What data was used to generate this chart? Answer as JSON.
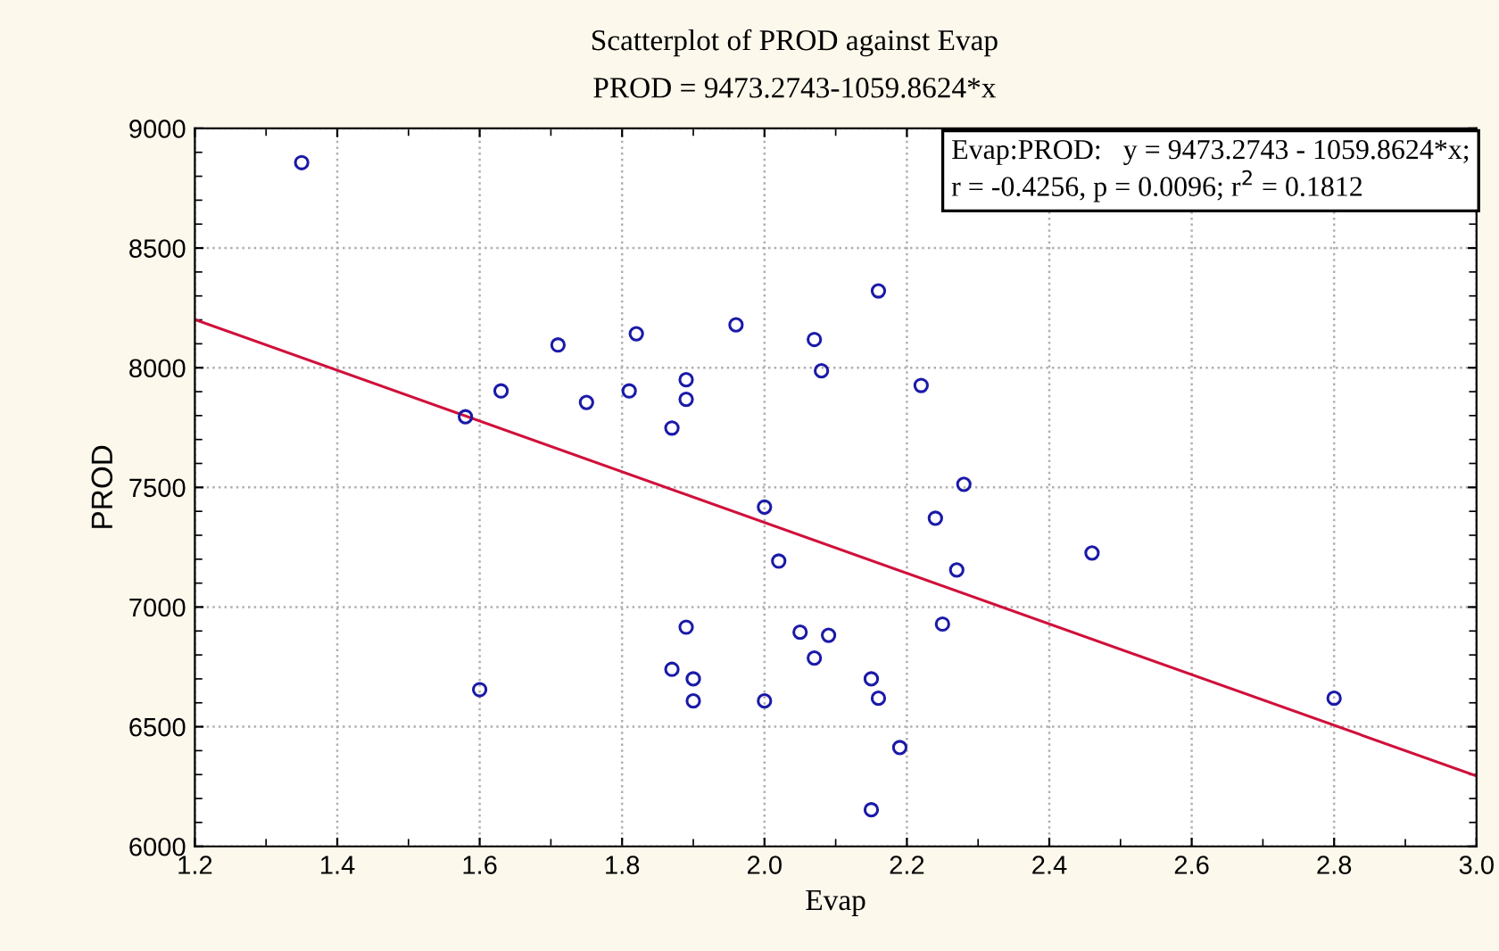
{
  "chart_data": {
    "type": "scatter",
    "title": "Scatterplot of PROD against Evap",
    "subtitle": "PROD = 9473.2743-1059.8624*x",
    "xlabel": "Evap",
    "ylabel": "PROD",
    "annotations": [
      "Evap:PROD:   y = 9473.2743 - 1059.8624*x;\nr = -0.4256, p = 0.0096; r$^{2}$ = 0.1812"
    ],
    "xlim": [
      1.2,
      3.0
    ],
    "xticks": [
      {
        "value": 1.2,
        "label": "1.2"
      },
      {
        "value": 1.4,
        "label": "1.4"
      },
      {
        "value": 1.6,
        "label": "1.6"
      },
      {
        "value": 1.8,
        "label": "1.8"
      },
      {
        "value": 2.0,
        "label": "2.0"
      },
      {
        "value": 2.2,
        "label": "2.2"
      },
      {
        "value": 2.4,
        "label": "2.4"
      },
      {
        "value": 2.6,
        "label": "2.6"
      },
      {
        "value": 2.8,
        "label": "2.8"
      },
      {
        "value": 3.0,
        "label": "3.0"
      }
    ],
    "ylim": [
      6000,
      9000
    ],
    "yticks": [
      6000,
      6500,
      7000,
      7500,
      8000,
      8500,
      9000
    ],
    "grid": true,
    "series": [
      {
        "marker": "circle",
        "color": "#1a1aa8",
        "x": [
          1.35,
          1.71,
          1.82,
          1.96,
          2.07,
          2.08,
          1.63,
          1.58,
          1.75,
          1.81,
          1.89,
          1.89,
          1.87,
          2.16,
          2.22,
          1.6,
          1.89,
          1.87,
          1.9,
          1.9,
          2.0,
          2.0,
          2.02,
          2.05,
          2.07,
          2.09,
          2.15,
          2.16,
          2.19,
          2.15,
          2.25,
          2.27,
          2.24,
          2.28,
          2.46,
          2.8
        ],
        "values": [
          8857,
          8095,
          8142,
          8179,
          8118,
          7987,
          7903,
          7795,
          7855,
          7903,
          7950,
          7868,
          7748,
          8321,
          7926,
          6655,
          6916,
          6740,
          6700,
          6608,
          6608,
          7418,
          7192,
          6895,
          6787,
          6882,
          6700,
          6619,
          6413,
          6153,
          6929,
          7155,
          7371,
          7513,
          7226,
          6619
        ]
      },
      {
        "type": "line",
        "color": "#d0103a",
        "line_style": "solid",
        "x": [
          1.2,
          3.0
        ],
        "values": [
          8201,
          6294
        ]
      }
    ]
  }
}
